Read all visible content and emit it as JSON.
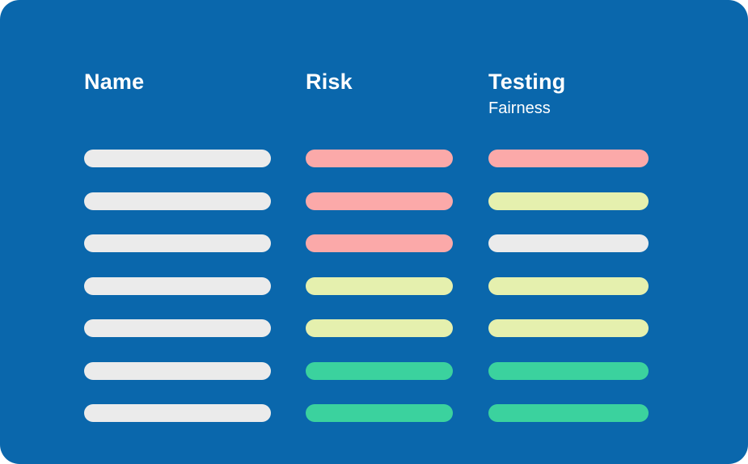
{
  "panel": {
    "background_color": "#0a67ac"
  },
  "columns": [
    {
      "key": "name",
      "label": "Name",
      "sublabel": ""
    },
    {
      "key": "risk",
      "label": "Risk",
      "sublabel": ""
    },
    {
      "key": "testing",
      "label": "Testing",
      "sublabel": "Fairness"
    }
  ],
  "colors": {
    "neutral": "#ebebeb",
    "high": "#fba9a9",
    "medium": "#e5f0ae",
    "low": "#3bd29e",
    "text": "#ffffff"
  },
  "rows": [
    {
      "name": "neutral",
      "risk": "high",
      "testing": "high"
    },
    {
      "name": "neutral",
      "risk": "high",
      "testing": "medium"
    },
    {
      "name": "neutral",
      "risk": "high",
      "testing": "neutral"
    },
    {
      "name": "neutral",
      "risk": "medium",
      "testing": "medium"
    },
    {
      "name": "neutral",
      "risk": "medium",
      "testing": "medium"
    },
    {
      "name": "neutral",
      "risk": "low",
      "testing": "low"
    },
    {
      "name": "neutral",
      "risk": "low",
      "testing": "low"
    }
  ]
}
